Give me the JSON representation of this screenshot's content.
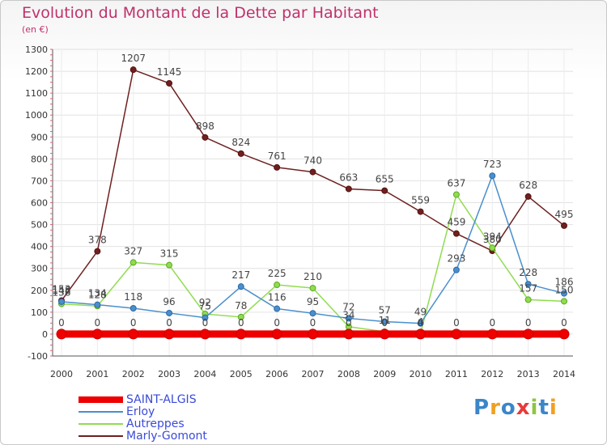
{
  "title": "Evolution du Montant de la Dette par Habitant",
  "unit_label": "(en €)",
  "logo": {
    "text": "Proxiti",
    "colors": [
      "#3a86c8",
      "#f0a020",
      "#3a86c8",
      "#e83a3a",
      "#8cc63f",
      "#3a86c8",
      "#f0a020"
    ]
  },
  "chart_data": {
    "type": "line",
    "title": "Evolution du Montant de la Dette par Habitant",
    "ylabel": "(en €)",
    "xlabel": "",
    "x": [
      "2000",
      "2001",
      "2002",
      "2003",
      "2004",
      "2005",
      "2006",
      "2007",
      "2008",
      "2009",
      "2010",
      "2011",
      "2012",
      "2013",
      "2014"
    ],
    "ylim": [
      -100,
      1300
    ],
    "yticks": [
      -100,
      0,
      100,
      200,
      300,
      400,
      500,
      600,
      700,
      800,
      900,
      1000,
      1100,
      1200,
      1300
    ],
    "grid": true,
    "legend_position": "bottom",
    "series": [
      {
        "name": "SAINT-ALGIS",
        "color": "#ee0000",
        "values": [
          0,
          0,
          0,
          0,
          0,
          0,
          0,
          0,
          0,
          0,
          0,
          0,
          0,
          0,
          0
        ]
      },
      {
        "name": "Erloy",
        "color": "#4a8fcc",
        "values": [
          148,
          134,
          118,
          96,
          75,
          217,
          116,
          95,
          72,
          57,
          49,
          293,
          723,
          228,
          186
        ]
      },
      {
        "name": "Autreppes",
        "color": "#90dc50",
        "values": [
          138,
          128,
          327,
          315,
          92,
          78,
          225,
          210,
          34,
          11,
          4,
          637,
          394,
          157,
          150
        ]
      },
      {
        "name": "Marly-Gomont",
        "color": "#6e2020",
        "values": [
          153,
          378,
          1207,
          1145,
          898,
          824,
          761,
          740,
          663,
          655,
          559,
          459,
          380,
          628,
          495
        ]
      }
    ],
    "data_labels": [
      {
        "series": "SAINT-ALGIS",
        "values": [
          "0",
          "0",
          "0",
          "0",
          "0",
          "0",
          "0",
          "0",
          "0",
          "0",
          "0",
          "0",
          "0",
          "0",
          "0"
        ]
      },
      {
        "series": "Erloy",
        "values": [
          "148",
          "134",
          "118",
          "96",
          "75",
          "217",
          "116",
          "95",
          "72",
          "57",
          "49",
          "293",
          "723",
          "228",
          "186"
        ]
      },
      {
        "series": "Autreppes",
        "values": [
          "138",
          "128",
          "327",
          "315",
          "92",
          "78",
          "225",
          "210",
          "34",
          "11",
          "4",
          "637",
          "394",
          "157",
          "150"
        ]
      },
      {
        "series": "Marly-Gomont",
        "values": [
          "153",
          "378",
          "1207",
          "1145",
          "898",
          "824",
          "761",
          "740",
          "663",
          "655",
          "559",
          "459",
          "380",
          "628",
          "495"
        ]
      }
    ]
  }
}
